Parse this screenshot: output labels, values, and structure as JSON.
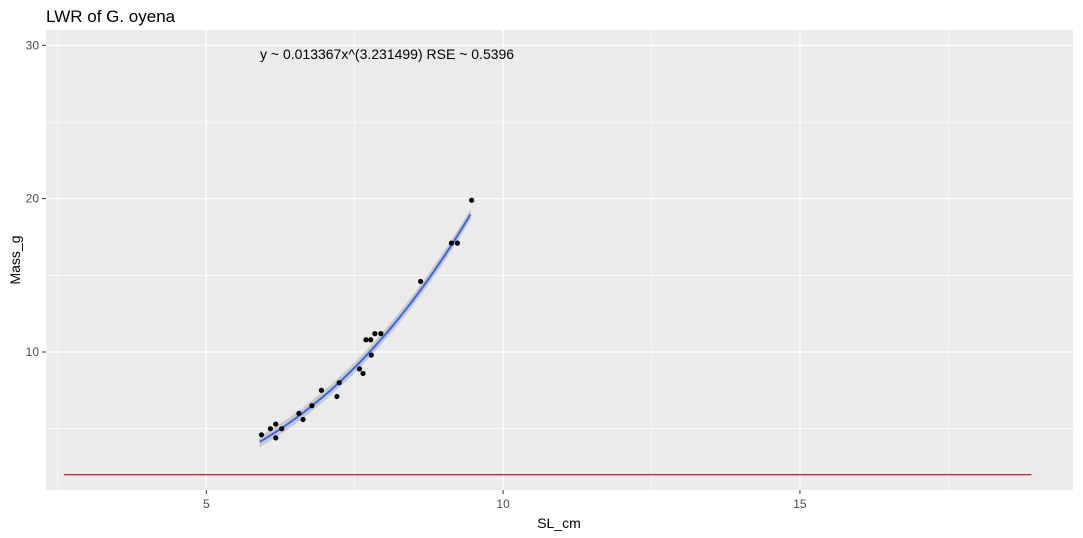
{
  "chart_data": {
    "type": "scatter",
    "title": "LWR of G. oyena",
    "xlabel": "SL_cm",
    "ylabel": "Mass_g",
    "xlim": [
      2.3,
      19.6
    ],
    "ylim": [
      1.0,
      31.0
    ],
    "x_ticks": [
      5,
      10,
      15
    ],
    "x_tick_labels": [
      "5",
      "10",
      "15"
    ],
    "y_ticks": [
      10,
      20,
      30
    ],
    "y_tick_labels": [
      "10",
      "20",
      "30"
    ],
    "grid": true,
    "legend": "none",
    "annotation": "y ~ 0.013367x^(3.231499)  RSE ~ 0.5396",
    "points": [
      {
        "x": 5.93,
        "y": 4.6
      },
      {
        "x": 6.08,
        "y": 5.0
      },
      {
        "x": 6.17,
        "y": 5.3
      },
      {
        "x": 6.17,
        "y": 4.4
      },
      {
        "x": 6.27,
        "y": 5.0
      },
      {
        "x": 6.56,
        "y": 6.0
      },
      {
        "x": 6.63,
        "y": 5.6
      },
      {
        "x": 6.78,
        "y": 6.5
      },
      {
        "x": 6.94,
        "y": 7.5
      },
      {
        "x": 7.2,
        "y": 7.1
      },
      {
        "x": 7.24,
        "y": 8.0
      },
      {
        "x": 7.58,
        "y": 8.9
      },
      {
        "x": 7.64,
        "y": 8.6
      },
      {
        "x": 7.69,
        "y": 10.8
      },
      {
        "x": 7.77,
        "y": 10.8
      },
      {
        "x": 7.78,
        "y": 9.8
      },
      {
        "x": 7.84,
        "y": 11.2
      },
      {
        "x": 7.94,
        "y": 11.2
      },
      {
        "x": 8.61,
        "y": 14.6
      },
      {
        "x": 9.13,
        "y": 17.1
      },
      {
        "x": 9.23,
        "y": 17.1
      },
      {
        "x": 9.47,
        "y": 19.9
      }
    ],
    "fit": {
      "name": "y ~ 0.013367x^(3.231499)",
      "a": 0.013367,
      "b": 3.231499,
      "x_range": [
        5.9,
        9.45
      ],
      "band": 0.35
    },
    "hline": {
      "y": 2.0,
      "x_range": [
        2.6,
        18.9
      ]
    },
    "colors": {
      "panel": "#ebebeb",
      "grid": "#ffffff",
      "points": "#000000",
      "fit_line": "#3366ff",
      "fit_band": "#b3b3b3",
      "hline": "#cc0000",
      "tick_label": "#4d4d4d"
    }
  }
}
